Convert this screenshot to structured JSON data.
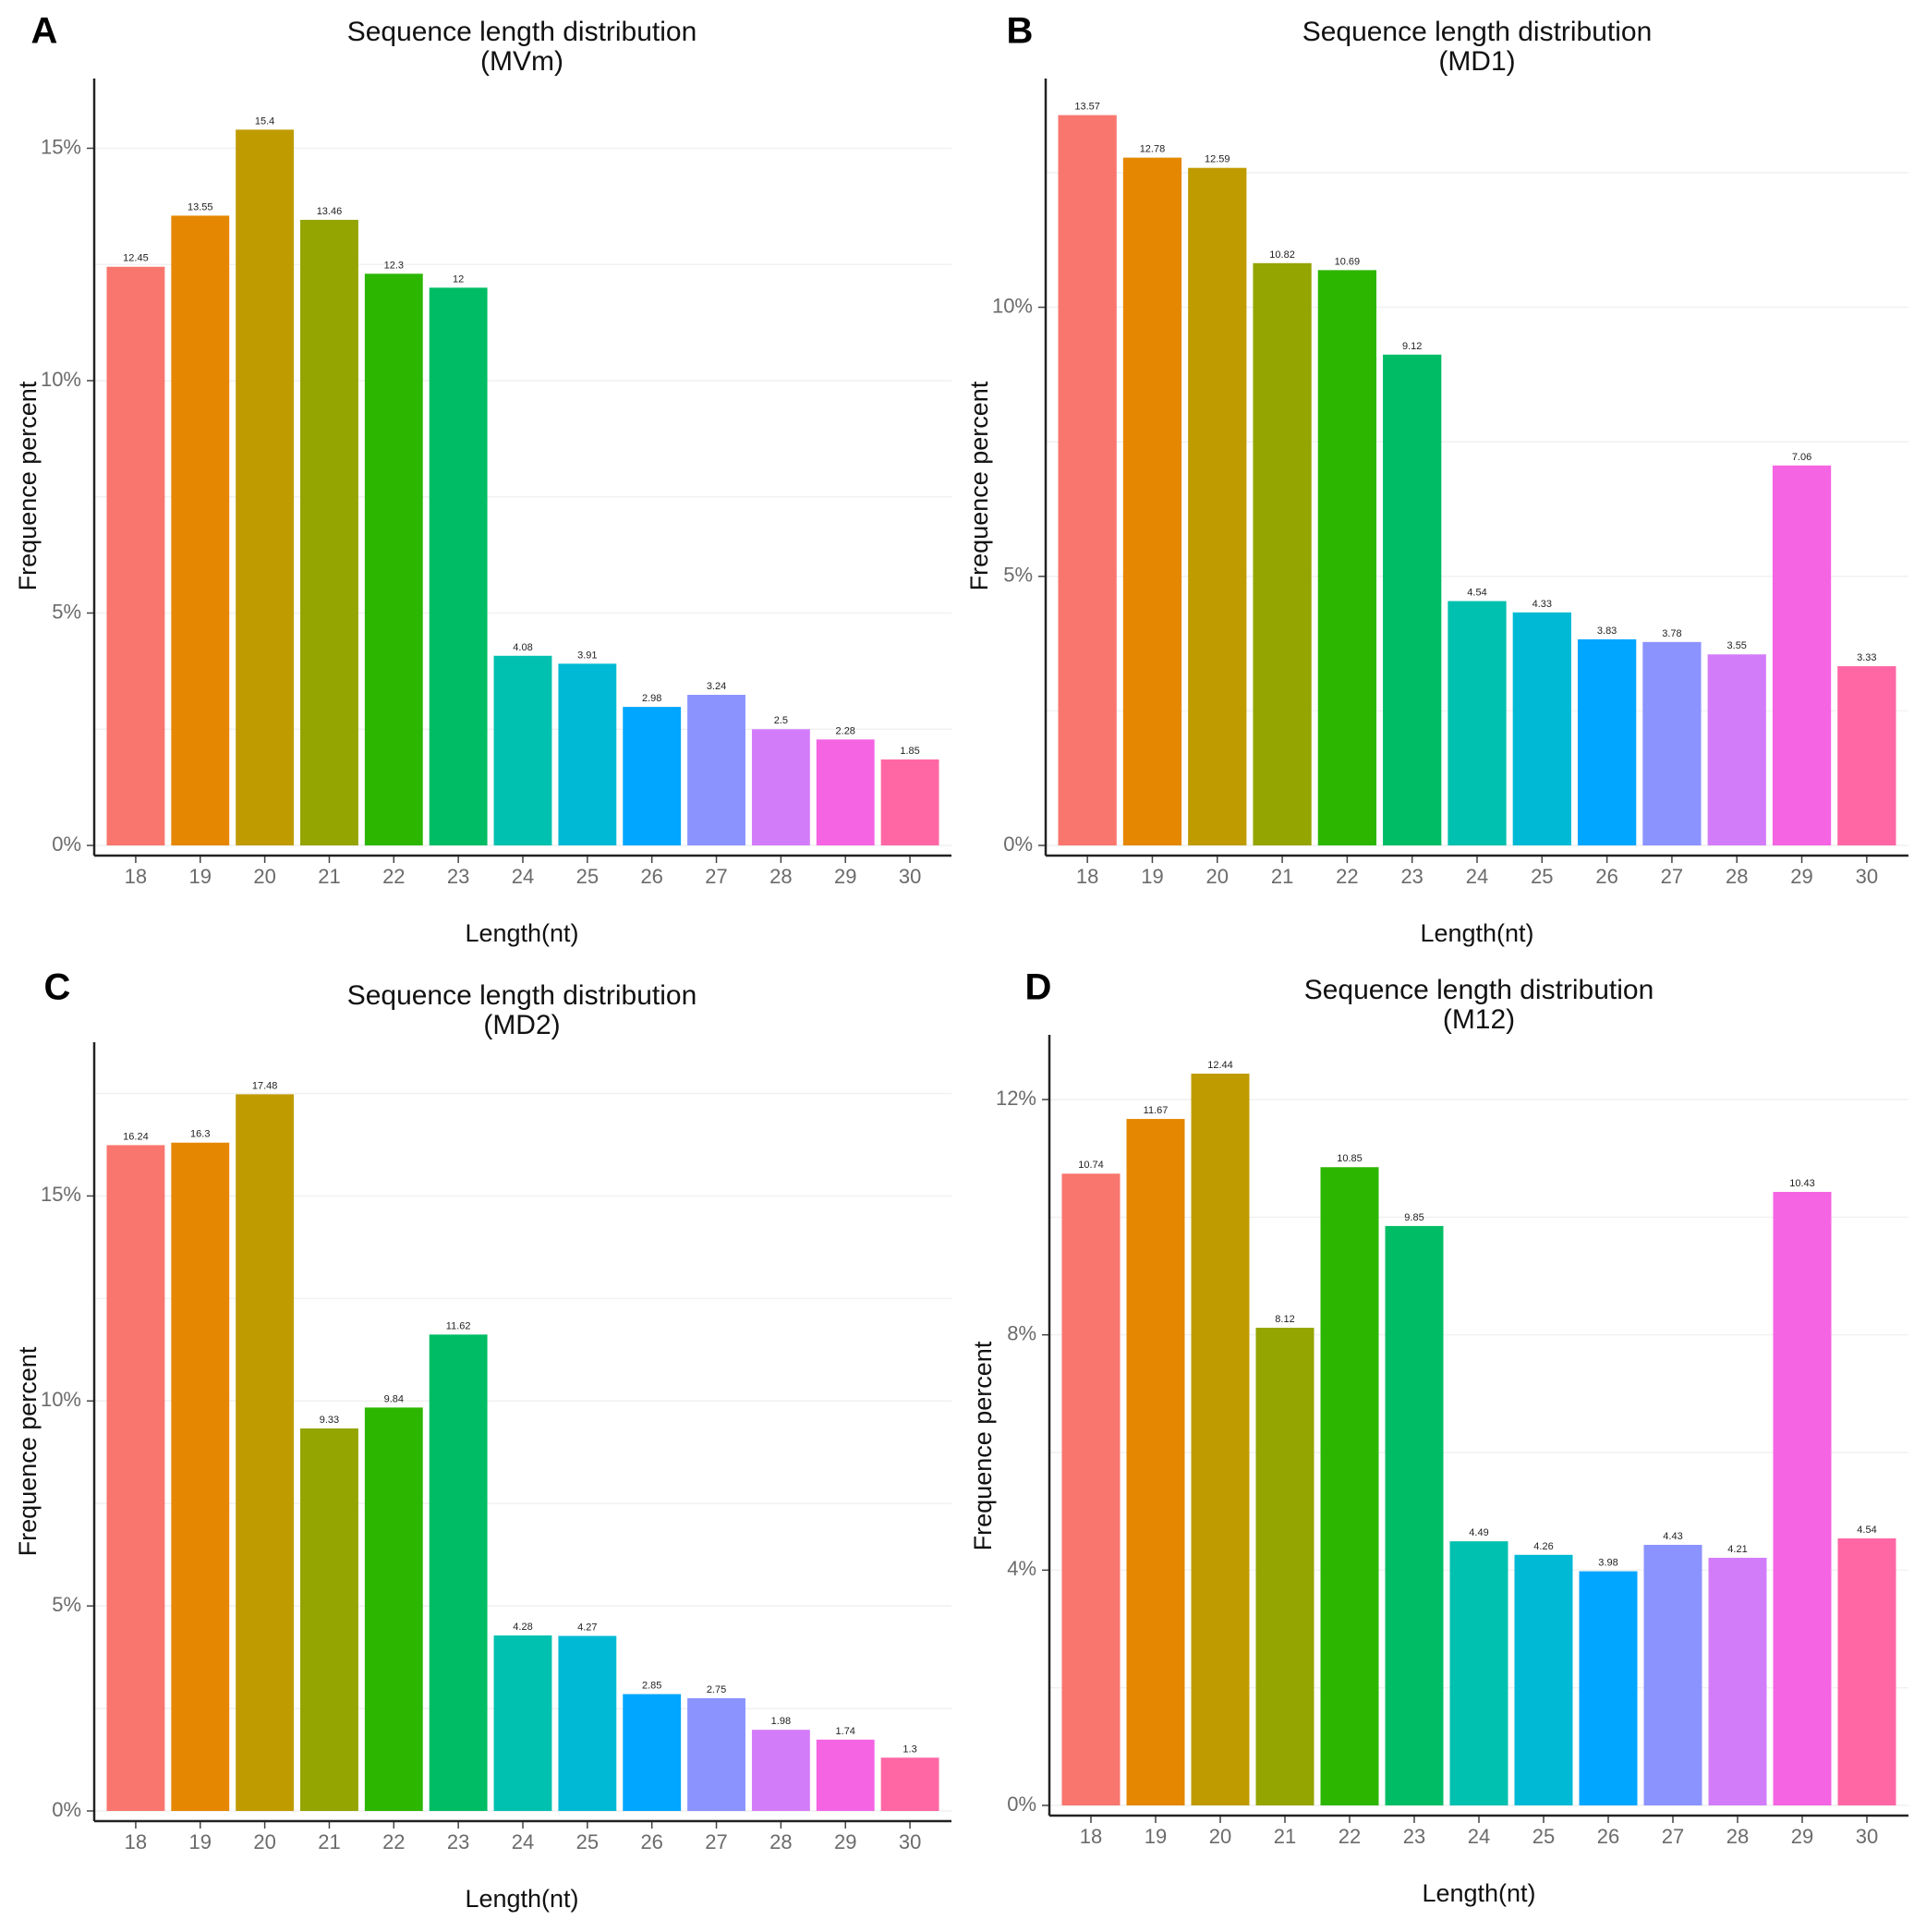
{
  "figure": {
    "colors": [
      "#F8766D",
      "#E58700",
      "#C09B00",
      "#94A400",
      "#2DB600",
      "#00BD65",
      "#00C0AF",
      "#00BAD5",
      "#00A6FF",
      "#8B93FF",
      "#D37CFA",
      "#F564E3",
      "#FF67A4"
    ]
  },
  "chart_data": [
    {
      "panel": "A",
      "type": "bar",
      "title": "Sequence length distribution",
      "subtitle": "(MVm)",
      "xlabel": "Length(nt)",
      "ylabel": "Frequence percent",
      "categories": [
        "18",
        "19",
        "20",
        "21",
        "22",
        "23",
        "24",
        "25",
        "26",
        "27",
        "28",
        "29",
        "30"
      ],
      "values": [
        12.45,
        13.55,
        15.4,
        13.46,
        12.3,
        12,
        4.08,
        3.91,
        2.98,
        3.24,
        2.5,
        2.28,
        1.85
      ],
      "value_labels": [
        "12.45",
        "13.55",
        "15.4",
        "13.46",
        "12.3",
        "12",
        "4.08",
        "3.91",
        "2.98",
        "3.24",
        "2.5",
        "2.28",
        "1.85"
      ],
      "yticks": [
        0,
        5,
        10,
        15
      ],
      "ytick_labels": [
        "0%",
        "5%",
        "10%",
        "15%"
      ],
      "ylim": [
        0,
        16.5
      ]
    },
    {
      "panel": "B",
      "type": "bar",
      "title": "Sequence length distribution",
      "subtitle": "(MD1)",
      "xlabel": "Length(nt)",
      "ylabel": "Frequence percent",
      "categories": [
        "18",
        "19",
        "20",
        "21",
        "22",
        "23",
        "24",
        "25",
        "26",
        "27",
        "28",
        "29",
        "30"
      ],
      "values": [
        13.57,
        12.78,
        12.59,
        10.82,
        10.69,
        9.12,
        4.54,
        4.33,
        3.83,
        3.78,
        3.55,
        7.06,
        3.33
      ],
      "value_labels": [
        "13.57",
        "12.78",
        "12.59",
        "10.82",
        "10.69",
        "9.12",
        "4.54",
        "4.33",
        "3.83",
        "3.78",
        "3.55",
        "7.06",
        "3.33"
      ],
      "yticks": [
        0,
        5,
        10
      ],
      "ytick_labels": [
        "0%",
        "5%",
        "10%"
      ],
      "ylim": [
        0,
        14.25
      ]
    },
    {
      "panel": "C",
      "type": "bar",
      "title": "Sequence length distribution",
      "subtitle": "(MD2)",
      "xlabel": "Length(nt)",
      "ylabel": "Frequence percent",
      "categories": [
        "18",
        "19",
        "20",
        "21",
        "22",
        "23",
        "24",
        "25",
        "26",
        "27",
        "28",
        "29",
        "30"
      ],
      "values": [
        16.24,
        16.3,
        17.48,
        9.33,
        9.84,
        11.62,
        4.28,
        4.27,
        2.85,
        2.75,
        1.98,
        1.74,
        1.3
      ],
      "value_labels": [
        "16.24",
        "16.3",
        "17.48",
        "9.33",
        "9.84",
        "11.62",
        "4.28",
        "4.27",
        "2.85",
        "2.75",
        "1.98",
        "1.74",
        "1.3"
      ],
      "yticks": [
        0,
        5,
        10,
        15
      ],
      "ytick_labels": [
        "0%",
        "5%",
        "10%",
        "15%"
      ],
      "ylim": [
        0,
        18.75
      ]
    },
    {
      "panel": "D",
      "type": "bar",
      "title": "Sequence length distribution",
      "subtitle": "(M12)",
      "xlabel": "Length(nt)",
      "ylabel": "Frequence percent",
      "categories": [
        "18",
        "19",
        "20",
        "21",
        "22",
        "23",
        "24",
        "25",
        "26",
        "27",
        "28",
        "29",
        "30"
      ],
      "values": [
        10.74,
        11.67,
        12.44,
        8.12,
        10.85,
        9.85,
        4.49,
        4.26,
        3.98,
        4.43,
        4.21,
        10.43,
        4.54
      ],
      "value_labels": [
        "10.74",
        "11.67",
        "12.44",
        "8.12",
        "10.85",
        "9.85",
        "4.49",
        "4.26",
        "3.98",
        "4.43",
        "4.21",
        "10.43",
        "4.54"
      ],
      "yticks": [
        0,
        4,
        8,
        12
      ],
      "ytick_labels": [
        "0%",
        "4%",
        "8%",
        "12%"
      ],
      "ylim": [
        0,
        13.1
      ]
    }
  ]
}
